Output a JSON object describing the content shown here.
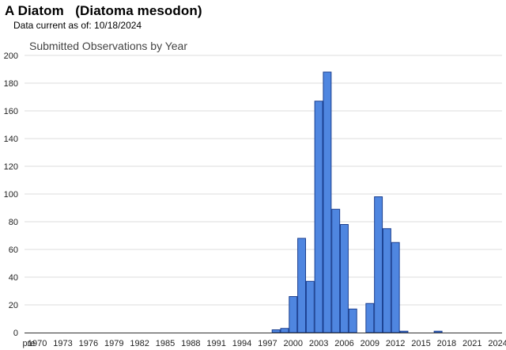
{
  "title": "A Diatom   (Diatoma mesodon)",
  "subtitle": "Data current as of: 10/18/2024",
  "chart_data": {
    "type": "bar",
    "title": "Submitted Observations by Year",
    "xlabel": "",
    "ylabel": "",
    "ylim": [
      0,
      200
    ],
    "yticks": [
      0,
      20,
      40,
      60,
      80,
      100,
      120,
      140,
      160,
      180,
      200
    ],
    "grid": true,
    "legend": "none",
    "bar_color": "#4f86e0",
    "bar_edge_color": "#1b3f8f",
    "categories": [
      "pre",
      "1970",
      "1971",
      "1972",
      "1973",
      "1974",
      "1975",
      "1976",
      "1977",
      "1978",
      "1979",
      "1980",
      "1981",
      "1982",
      "1983",
      "1984",
      "1985",
      "1986",
      "1987",
      "1988",
      "1989",
      "1990",
      "1991",
      "1992",
      "1993",
      "1994",
      "1995",
      "1996",
      "1997",
      "1998",
      "1999",
      "2000",
      "2001",
      "2002",
      "2003",
      "2004",
      "2005",
      "2006",
      "2007",
      "2008",
      "2009",
      "2010",
      "2011",
      "2012",
      "2013",
      "2014",
      "2015",
      "2016",
      "2017",
      "2018",
      "2019",
      "2020",
      "2021",
      "2022",
      "2023",
      "2024"
    ],
    "values": [
      0,
      0,
      0,
      0,
      0,
      0,
      0,
      0,
      0,
      0,
      0,
      0,
      0,
      0,
      0,
      0,
      0,
      0,
      0,
      0,
      0,
      0,
      0,
      0,
      0,
      0,
      0,
      0,
      0,
      2,
      3,
      26,
      68,
      37,
      167,
      188,
      89,
      78,
      17,
      0,
      21,
      98,
      75,
      65,
      1,
      0,
      0,
      0,
      1,
      0,
      0,
      0,
      0,
      0,
      0,
      0
    ],
    "tick_labels": [
      "pre",
      "1970",
      "1973",
      "1976",
      "1979",
      "1982",
      "1985",
      "1988",
      "1991",
      "1994",
      "1997",
      "2000",
      "2003",
      "2006",
      "2009",
      "2012",
      "2015",
      "2018",
      "2021",
      "2024"
    ]
  }
}
